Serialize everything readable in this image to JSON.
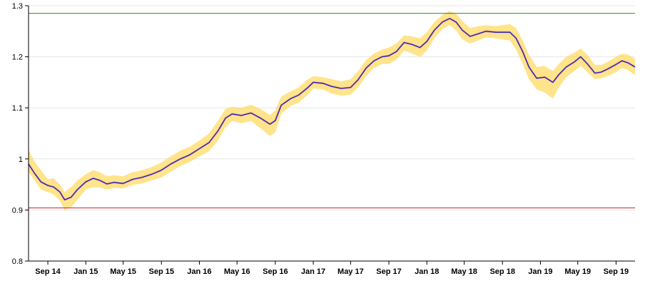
{
  "chart_data": {
    "type": "line",
    "title": "",
    "xlabel": "",
    "ylabel": "",
    "ylim": [
      0.8,
      1.3
    ],
    "xlim": [
      "2014-07-01",
      "2019-11-01"
    ],
    "grid": true,
    "yticks": [
      {
        "value": 0.8,
        "label": "0.8"
      },
      {
        "value": 0.9,
        "label": "0.9"
      },
      {
        "value": 1.0,
        "label": "1"
      },
      {
        "value": 1.1,
        "label": "1.1"
      },
      {
        "value": 1.2,
        "label": "1.2"
      },
      {
        "value": 1.3,
        "label": "1.3"
      }
    ],
    "xticks": [
      {
        "date": "2014-09-01",
        "label": "Sep 14"
      },
      {
        "date": "2015-01-01",
        "label": "Jan 15"
      },
      {
        "date": "2015-05-01",
        "label": "May 15"
      },
      {
        "date": "2015-09-01",
        "label": "Sep 15"
      },
      {
        "date": "2016-01-01",
        "label": "Jan 16"
      },
      {
        "date": "2016-05-01",
        "label": "May 16"
      },
      {
        "date": "2016-09-01",
        "label": "Sep 16"
      },
      {
        "date": "2017-01-01",
        "label": "Jan 17"
      },
      {
        "date": "2017-05-01",
        "label": "May 17"
      },
      {
        "date": "2017-09-01",
        "label": "Sep 17"
      },
      {
        "date": "2018-01-01",
        "label": "Jan 18"
      },
      {
        "date": "2018-05-01",
        "label": "May 18"
      },
      {
        "date": "2018-09-01",
        "label": "Sep 18"
      },
      {
        "date": "2019-01-01",
        "label": "Jan 19"
      },
      {
        "date": "2019-05-01",
        "label": "May 19"
      },
      {
        "date": "2019-09-01",
        "label": "Sep 19"
      }
    ],
    "reference_lines": [
      {
        "value": 1.285,
        "color": "#2e7d32"
      },
      {
        "value": 0.904,
        "color": "#c62828"
      }
    ],
    "series": [
      {
        "color": "#1f1fc8",
        "points": [
          [
            "2014-07-01",
            0.99
          ],
          [
            "2014-07-20",
            0.972
          ],
          [
            "2014-08-10",
            0.955
          ],
          [
            "2014-09-01",
            0.948
          ],
          [
            "2014-09-20",
            0.945
          ],
          [
            "2014-10-10",
            0.935
          ],
          [
            "2014-10-25",
            0.92
          ],
          [
            "2014-11-15",
            0.925
          ],
          [
            "2014-12-05",
            0.94
          ],
          [
            "2015-01-01",
            0.955
          ],
          [
            "2015-01-25",
            0.962
          ],
          [
            "2015-02-15",
            0.958
          ],
          [
            "2015-03-10",
            0.951
          ],
          [
            "2015-04-01",
            0.954
          ],
          [
            "2015-05-01",
            0.952
          ],
          [
            "2015-06-01",
            0.96
          ],
          [
            "2015-07-01",
            0.964
          ],
          [
            "2015-08-01",
            0.97
          ],
          [
            "2015-09-01",
            0.978
          ],
          [
            "2015-10-01",
            0.99
          ],
          [
            "2015-11-01",
            1.0
          ],
          [
            "2015-12-01",
            1.008
          ],
          [
            "2016-01-01",
            1.02
          ],
          [
            "2016-02-01",
            1.032
          ],
          [
            "2016-03-01",
            1.055
          ],
          [
            "2016-03-25",
            1.08
          ],
          [
            "2016-04-15",
            1.088
          ],
          [
            "2016-05-15",
            1.085
          ],
          [
            "2016-06-15",
            1.09
          ],
          [
            "2016-07-15",
            1.08
          ],
          [
            "2016-08-15",
            1.068
          ],
          [
            "2016-09-01",
            1.075
          ],
          [
            "2016-09-20",
            1.105
          ],
          [
            "2016-10-20",
            1.118
          ],
          [
            "2016-11-15",
            1.125
          ],
          [
            "2016-12-15",
            1.14
          ],
          [
            "2017-01-01",
            1.15
          ],
          [
            "2017-02-01",
            1.148
          ],
          [
            "2017-03-01",
            1.142
          ],
          [
            "2017-04-01",
            1.138
          ],
          [
            "2017-05-01",
            1.14
          ],
          [
            "2017-05-25",
            1.155
          ],
          [
            "2017-06-20",
            1.178
          ],
          [
            "2017-07-15",
            1.192
          ],
          [
            "2017-08-10",
            1.2
          ],
          [
            "2017-09-01",
            1.202
          ],
          [
            "2017-09-25",
            1.21
          ],
          [
            "2017-10-20",
            1.228
          ],
          [
            "2017-11-15",
            1.224
          ],
          [
            "2017-12-10",
            1.218
          ],
          [
            "2018-01-01",
            1.23
          ],
          [
            "2018-01-25",
            1.252
          ],
          [
            "2018-02-20",
            1.268
          ],
          [
            "2018-03-15",
            1.275
          ],
          [
            "2018-04-05",
            1.268
          ],
          [
            "2018-04-25",
            1.252
          ],
          [
            "2018-05-20",
            1.24
          ],
          [
            "2018-06-15",
            1.245
          ],
          [
            "2018-07-10",
            1.25
          ],
          [
            "2018-08-10",
            1.248
          ],
          [
            "2018-09-01",
            1.248
          ],
          [
            "2018-09-25",
            1.248
          ],
          [
            "2018-10-15",
            1.236
          ],
          [
            "2018-11-05",
            1.21
          ],
          [
            "2018-11-25",
            1.18
          ],
          [
            "2018-12-20",
            1.158
          ],
          [
            "2019-01-15",
            1.16
          ],
          [
            "2019-02-10",
            1.15
          ],
          [
            "2019-03-01",
            1.165
          ],
          [
            "2019-03-25",
            1.18
          ],
          [
            "2019-04-20",
            1.19
          ],
          [
            "2019-05-10",
            1.2
          ],
          [
            "2019-06-01",
            1.186
          ],
          [
            "2019-06-25",
            1.168
          ],
          [
            "2019-07-15",
            1.17
          ],
          [
            "2019-08-05",
            1.176
          ],
          [
            "2019-09-01",
            1.185
          ],
          [
            "2019-09-20",
            1.192
          ],
          [
            "2019-10-10",
            1.188
          ],
          [
            "2019-11-01",
            1.18
          ]
        ]
      }
    ],
    "bands": [
      {
        "color": "#ffd54f",
        "opacity": 0.65,
        "points": [
          [
            "2014-07-01",
            0.975,
            1.018
          ],
          [
            "2014-07-20",
            0.958,
            0.995
          ],
          [
            "2014-08-10",
            0.94,
            0.978
          ],
          [
            "2014-09-01",
            0.935,
            0.96
          ],
          [
            "2014-09-20",
            0.93,
            0.962
          ],
          [
            "2014-10-10",
            0.918,
            0.95
          ],
          [
            "2014-10-25",
            0.9,
            0.935
          ],
          [
            "2014-11-15",
            0.905,
            0.945
          ],
          [
            "2014-12-05",
            0.92,
            0.958
          ],
          [
            "2015-01-01",
            0.94,
            0.97
          ],
          [
            "2015-01-25",
            0.945,
            0.978
          ],
          [
            "2015-02-15",
            0.944,
            0.974
          ],
          [
            "2015-03-10",
            0.94,
            0.966
          ],
          [
            "2015-04-01",
            0.943,
            0.968
          ],
          [
            "2015-05-01",
            0.942,
            0.966
          ],
          [
            "2015-06-01",
            0.949,
            0.974
          ],
          [
            "2015-07-01",
            0.952,
            0.978
          ],
          [
            "2015-08-01",
            0.958,
            0.984
          ],
          [
            "2015-09-01",
            0.964,
            0.993
          ],
          [
            "2015-10-01",
            0.975,
            1.005
          ],
          [
            "2015-11-01",
            0.986,
            1.016
          ],
          [
            "2015-12-01",
            0.994,
            1.024
          ],
          [
            "2016-01-01",
            1.005,
            1.036
          ],
          [
            "2016-02-01",
            1.015,
            1.05
          ],
          [
            "2016-03-01",
            1.036,
            1.075
          ],
          [
            "2016-03-25",
            1.062,
            1.098
          ],
          [
            "2016-04-15",
            1.074,
            1.102
          ],
          [
            "2016-05-15",
            1.07,
            1.1
          ],
          [
            "2016-06-15",
            1.074,
            1.106
          ],
          [
            "2016-07-15",
            1.06,
            1.098
          ],
          [
            "2016-08-15",
            1.045,
            1.086
          ],
          [
            "2016-09-01",
            1.052,
            1.095
          ],
          [
            "2016-09-20",
            1.088,
            1.122
          ],
          [
            "2016-10-20",
            1.104,
            1.132
          ],
          [
            "2016-11-15",
            1.11,
            1.14
          ],
          [
            "2016-12-15",
            1.126,
            1.156
          ],
          [
            "2017-01-01",
            1.138,
            1.162
          ],
          [
            "2017-02-01",
            1.136,
            1.16
          ],
          [
            "2017-03-01",
            1.128,
            1.156
          ],
          [
            "2017-04-01",
            1.124,
            1.152
          ],
          [
            "2017-05-01",
            1.126,
            1.156
          ],
          [
            "2017-05-25",
            1.14,
            1.172
          ],
          [
            "2017-06-20",
            1.162,
            1.194
          ],
          [
            "2017-07-15",
            1.178,
            1.206
          ],
          [
            "2017-08-10",
            1.186,
            1.214
          ],
          [
            "2017-09-01",
            1.186,
            1.218
          ],
          [
            "2017-09-25",
            1.194,
            1.226
          ],
          [
            "2017-10-20",
            1.212,
            1.242
          ],
          [
            "2017-11-15",
            1.206,
            1.24
          ],
          [
            "2017-12-10",
            1.2,
            1.236
          ],
          [
            "2018-01-01",
            1.212,
            1.248
          ],
          [
            "2018-01-25",
            1.236,
            1.268
          ],
          [
            "2018-02-20",
            1.254,
            1.282
          ],
          [
            "2018-03-15",
            1.262,
            1.29
          ],
          [
            "2018-04-05",
            1.252,
            1.284
          ],
          [
            "2018-04-25",
            1.234,
            1.27
          ],
          [
            "2018-05-20",
            1.226,
            1.256
          ],
          [
            "2018-06-15",
            1.232,
            1.26
          ],
          [
            "2018-07-10",
            1.238,
            1.262
          ],
          [
            "2018-08-10",
            1.236,
            1.26
          ],
          [
            "2018-09-01",
            1.234,
            1.262
          ],
          [
            "2018-09-25",
            1.232,
            1.264
          ],
          [
            "2018-10-15",
            1.214,
            1.256
          ],
          [
            "2018-11-05",
            1.186,
            1.232
          ],
          [
            "2018-11-25",
            1.156,
            1.204
          ],
          [
            "2018-12-20",
            1.136,
            1.18
          ],
          [
            "2019-01-15",
            1.13,
            1.182
          ],
          [
            "2019-02-10",
            1.118,
            1.172
          ],
          [
            "2019-03-01",
            1.14,
            1.186
          ],
          [
            "2019-03-25",
            1.16,
            1.2
          ],
          [
            "2019-04-20",
            1.172,
            1.208
          ],
          [
            "2019-05-10",
            1.182,
            1.216
          ],
          [
            "2019-06-01",
            1.17,
            1.204
          ],
          [
            "2019-06-25",
            1.156,
            1.184
          ],
          [
            "2019-07-15",
            1.158,
            1.184
          ],
          [
            "2019-08-05",
            1.162,
            1.19
          ],
          [
            "2019-09-01",
            1.17,
            1.2
          ],
          [
            "2019-09-20",
            1.178,
            1.206
          ],
          [
            "2019-10-10",
            1.174,
            1.204
          ],
          [
            "2019-11-01",
            1.164,
            1.196
          ]
        ]
      }
    ]
  }
}
